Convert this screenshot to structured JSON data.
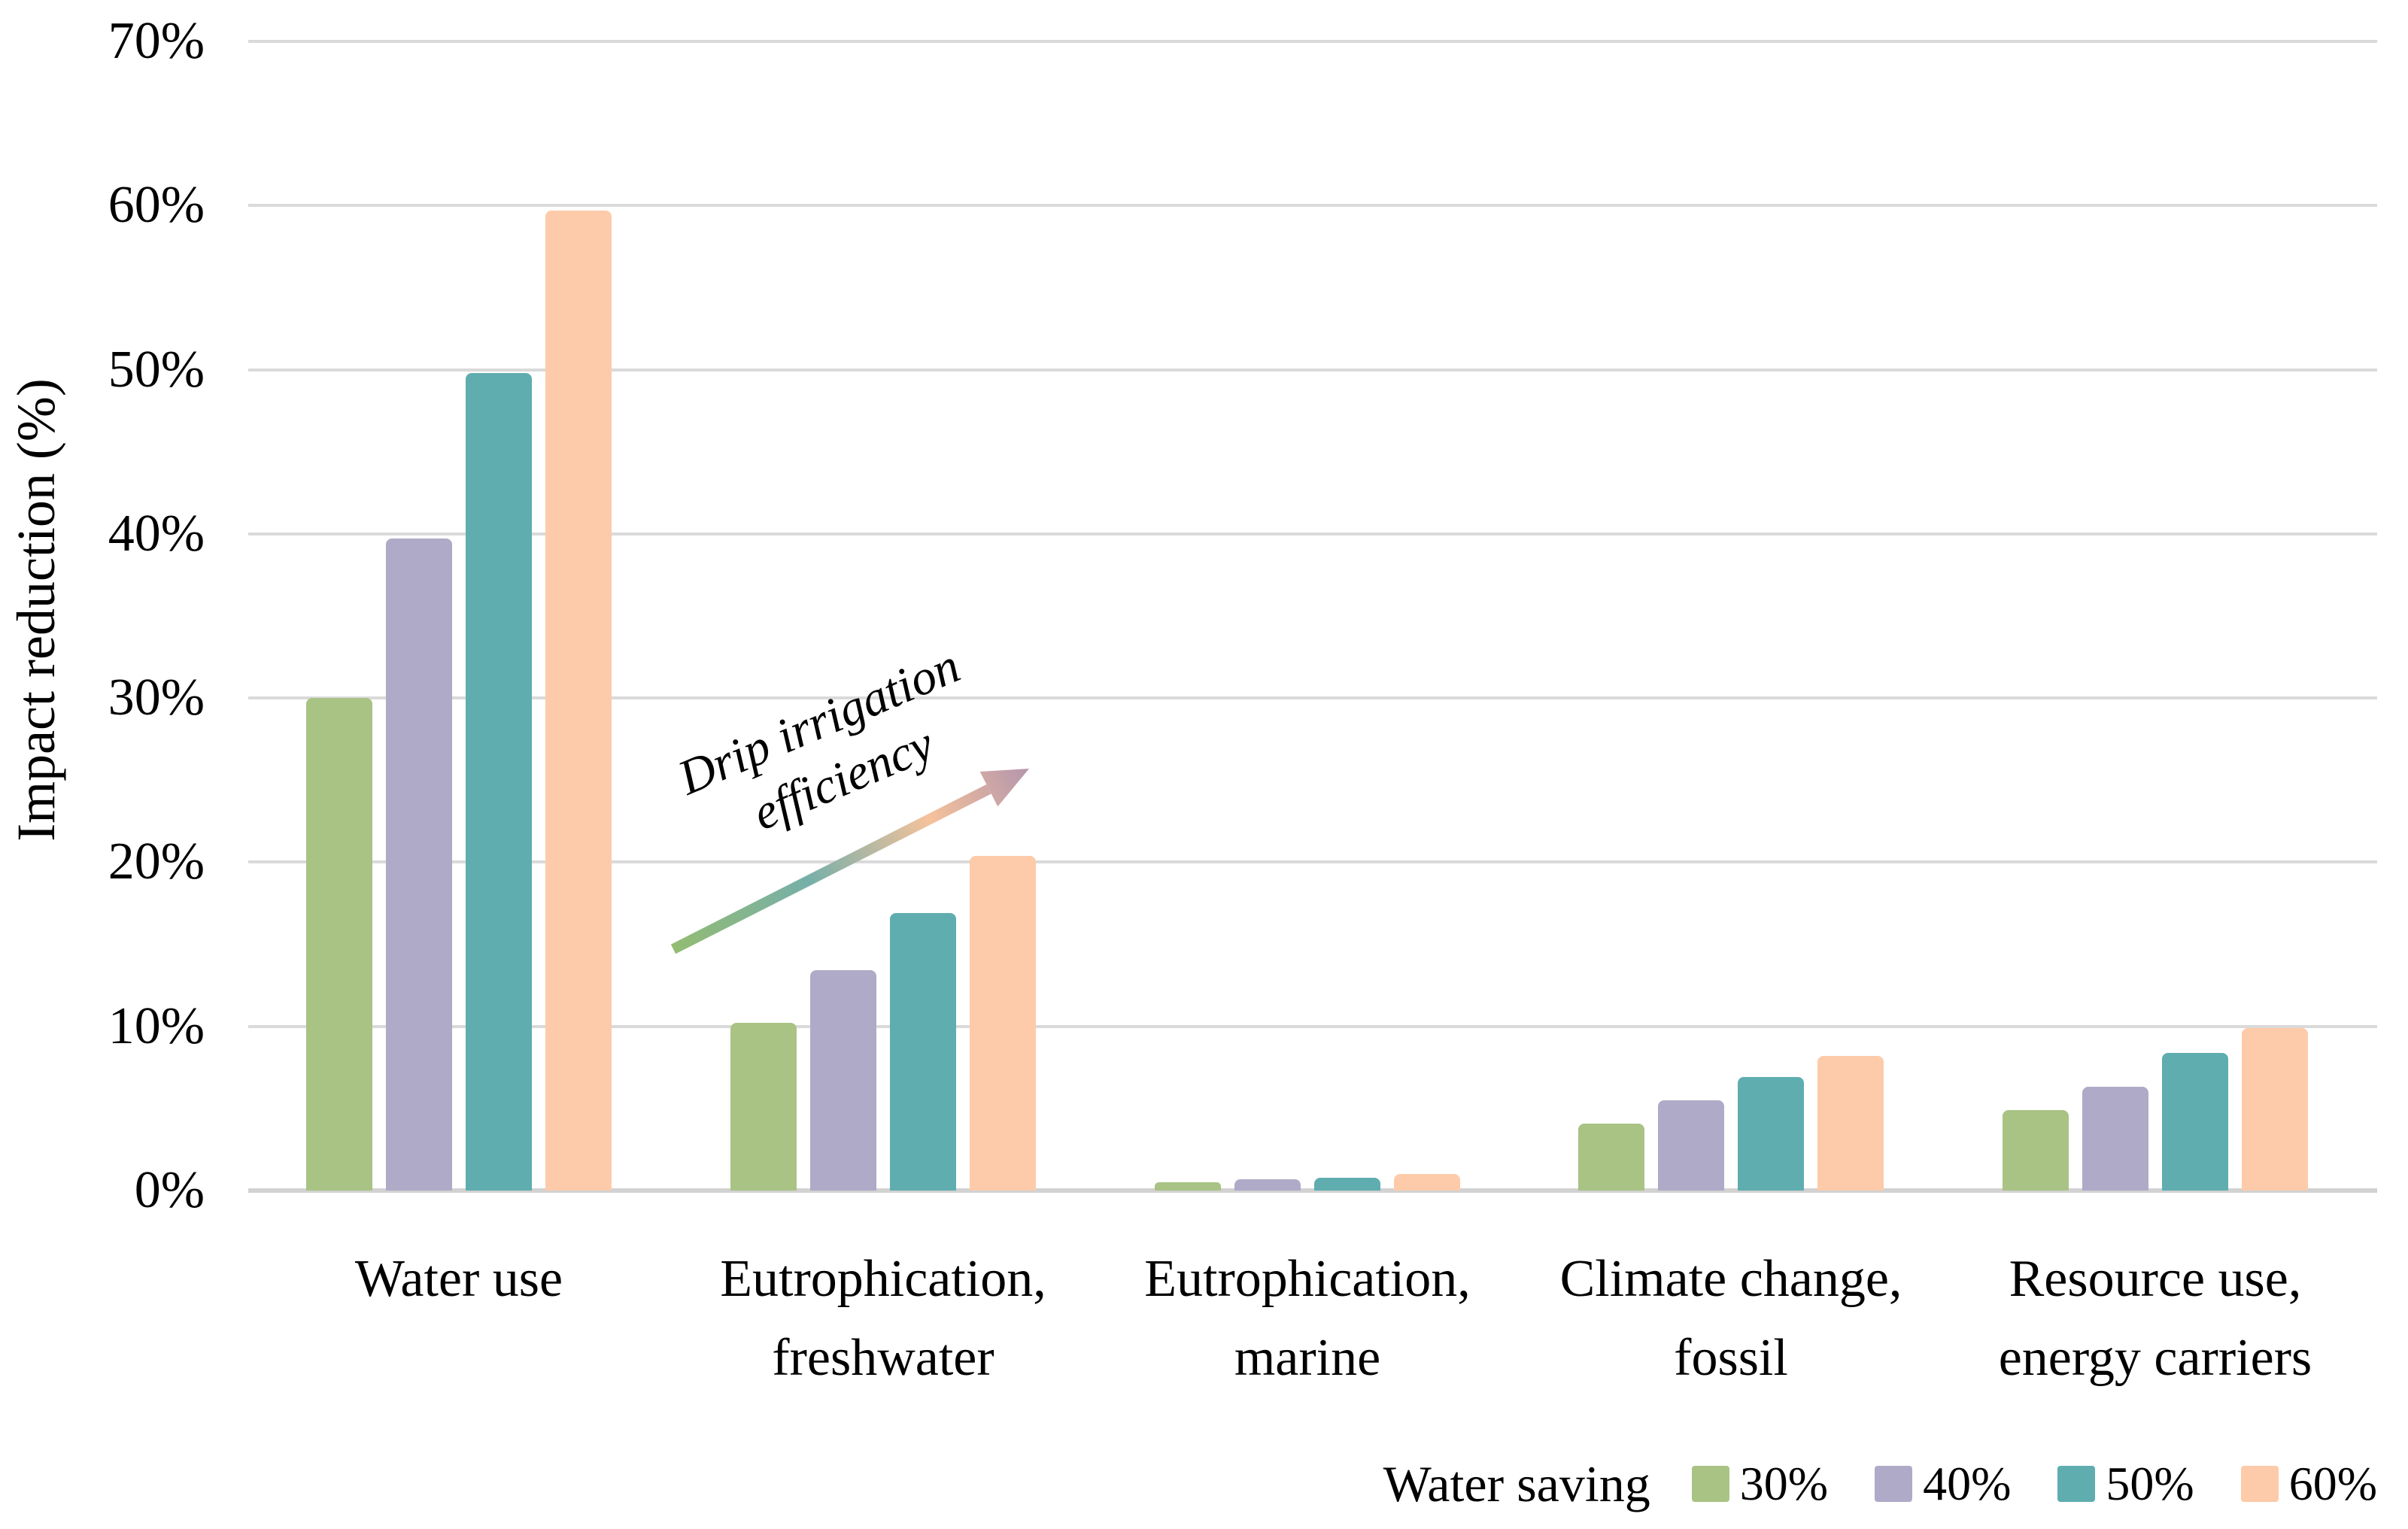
{
  "figure": {
    "y_axis_title": "Impact reduction (%)",
    "annotation": {
      "line1": "Drip irrigation",
      "line2": "efficiency",
      "arrow_colors": [
        "#93bc72",
        "#76afa9",
        "#f5c29b",
        "#b495ac"
      ]
    },
    "legend": {
      "title": "Water saving",
      "items": [
        {
          "label": "30%",
          "color": "#a8c384"
        },
        {
          "label": "40%",
          "color": "#afaac7"
        },
        {
          "label": "50%",
          "color": "#5fadaf"
        },
        {
          "label": "60%",
          "color": "#fdcba9"
        }
      ]
    },
    "colors": {
      "gridline": "#dadada",
      "axis_line": "#d2d2d2",
      "text": "#000000",
      "background": "#ffffff"
    }
  },
  "chart_data": {
    "type": "bar",
    "title": "",
    "xlabel": "",
    "ylabel": "Impact reduction (%)",
    "ylim": [
      0,
      70
    ],
    "ytick_step": 10,
    "ytick_suffix": "%",
    "grid": true,
    "legend_position": "bottom-right",
    "legend_title": "Water saving",
    "annotation_text": "Drip irrigation efficiency",
    "categories": [
      [
        "Water use"
      ],
      [
        "Eutrophication,",
        "freshwater"
      ],
      [
        "Eutrophication,",
        "marine"
      ],
      [
        "Climate change,",
        "fossil"
      ],
      [
        "Resource use,",
        "energy carriers"
      ]
    ],
    "series": [
      {
        "name": "30%",
        "color": "#a8c384",
        "values": [
          30.0,
          10.2,
          0.5,
          4.1,
          4.9
        ]
      },
      {
        "name": "40%",
        "color": "#afaac7",
        "values": [
          39.7,
          13.4,
          0.7,
          5.5,
          6.3
        ]
      },
      {
        "name": "50%",
        "color": "#5fadaf",
        "values": [
          49.8,
          16.9,
          0.8,
          6.9,
          8.4
        ]
      },
      {
        "name": "60%",
        "color": "#fdcba9",
        "values": [
          59.7,
          20.4,
          1.0,
          8.2,
          9.9
        ]
      }
    ]
  }
}
